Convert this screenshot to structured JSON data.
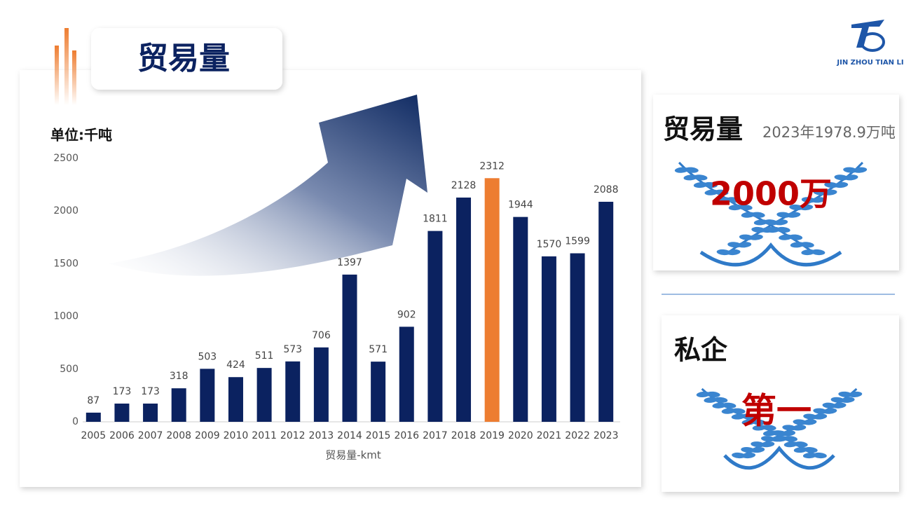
{
  "header": {
    "title": "贸易量",
    "logo_text": "JIN ZHOU TIAN LI"
  },
  "chart_data": {
    "type": "bar",
    "unit_label": "单位:千吨",
    "x_label": "贸易量-kmt",
    "categories": [
      "2005",
      "2006",
      "2007",
      "2008",
      "2009",
      "2010",
      "2011",
      "2012",
      "2013",
      "2014",
      "2015",
      "2016",
      "2017",
      "2018",
      "2019",
      "2020",
      "2021",
      "2022",
      "2023"
    ],
    "values": [
      87,
      173,
      173,
      318,
      503,
      424,
      511,
      573,
      706,
      1397,
      571,
      902,
      1811,
      2128,
      2312,
      1944,
      1570,
      1599,
      2088
    ],
    "colors": [
      "#0b2260",
      "#0b2260",
      "#0b2260",
      "#0b2260",
      "#0b2260",
      "#0b2260",
      "#0b2260",
      "#0b2260",
      "#0b2260",
      "#0b2260",
      "#0b2260",
      "#0b2260",
      "#0b2260",
      "#0b2260",
      "#ed7d31",
      "#0b2260",
      "#0b2260",
      "#0b2260",
      "#0b2260"
    ],
    "ylim": [
      0,
      2500
    ],
    "yticks": [
      0,
      500,
      1000,
      1500,
      2000,
      2500
    ],
    "grid": false
  },
  "panels": [
    {
      "title": "贸易量",
      "note": "2023年1978.9万吨",
      "highlight": "2000万"
    },
    {
      "title": "私企",
      "highlight": "第一"
    }
  ]
}
